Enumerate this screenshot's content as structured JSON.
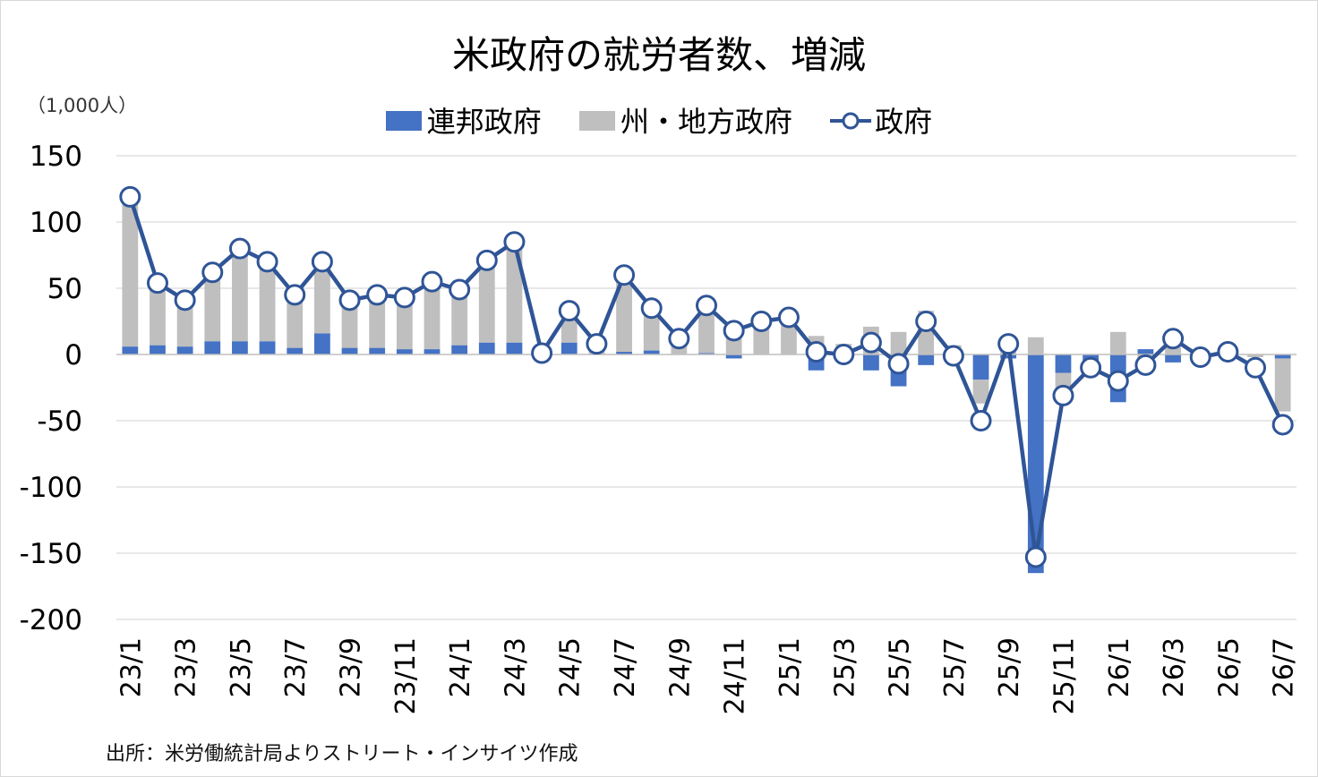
{
  "chart_data": {
    "type": "bar",
    "title": "米政府の就労者数、増減",
    "unit_label": "（1,000人）",
    "source": "出所：米労働統計局よりストリート・インサイツ作成",
    "ylim": [
      -200,
      150
    ],
    "yticks": [
      150,
      100,
      50,
      0,
      -50,
      -100,
      -150,
      -200
    ],
    "legend_position": "top-center",
    "grid": true,
    "categories": [
      "23/1",
      "23/2",
      "23/3",
      "23/4",
      "23/5",
      "23/6",
      "23/7",
      "23/8",
      "23/9",
      "23/10",
      "23/11",
      "23/12",
      "24/1",
      "24/2",
      "24/3",
      "24/4",
      "24/5",
      "24/6",
      "24/7",
      "24/8",
      "24/9",
      "24/10",
      "24/11",
      "24/12",
      "25/1",
      "25/2",
      "25/3",
      "25/4",
      "25/5",
      "25/6",
      "25/7",
      "25/8",
      "25/9",
      "25/10",
      "25/11",
      "25/12",
      "26/1",
      "26/2",
      "26/3",
      "26/4",
      "26/5",
      "26/6",
      "26/7"
    ],
    "x_tick_labels": [
      "23/1",
      "",
      "23/3",
      "",
      "23/5",
      "",
      "23/7",
      "",
      "23/9",
      "",
      "23/11",
      "",
      "24/1",
      "",
      "24/3",
      "",
      "24/5",
      "",
      "24/7",
      "",
      "24/9",
      "",
      "24/11",
      "",
      "25/1",
      "",
      "25/3",
      "",
      "25/5",
      "",
      "25/7",
      "",
      "25/9",
      "",
      "25/11",
      "",
      "26/1",
      "",
      "26/3",
      "",
      "26/5",
      "",
      "26/7"
    ],
    "series": [
      {
        "name": "連邦政府",
        "type": "bar",
        "color": "#4472c4",
        "values": [
          6,
          7,
          6,
          10,
          10,
          10,
          5,
          16,
          5,
          5,
          4,
          4,
          7,
          9,
          9,
          0,
          9,
          0,
          2,
          3,
          0,
          1,
          -3,
          0,
          0,
          -12,
          -2,
          -12,
          -24,
          -8,
          -4,
          -19,
          -3,
          -165,
          -14,
          -5,
          -36,
          4,
          -6,
          -2,
          -2,
          0,
          -3
        ]
      },
      {
        "name": "州・地方政府",
        "type": "bar",
        "color": "#bfbfbf",
        "values": [
          113,
          47,
          35,
          52,
          70,
          60,
          40,
          54,
          36,
          40,
          39,
          51,
          42,
          62,
          76,
          1,
          24,
          8,
          58,
          32,
          12,
          36,
          21,
          25,
          28,
          14,
          8,
          21,
          17,
          33,
          7,
          -18,
          13,
          13,
          -17,
          -5,
          17,
          -12,
          17,
          -1,
          2,
          -2,
          -40
        ]
      },
      {
        "name": "政府",
        "type": "line",
        "color": "#2f5597",
        "values": [
          119,
          54,
          41,
          62,
          80,
          70,
          45,
          70,
          41,
          45,
          43,
          55,
          49,
          71,
          85,
          1,
          33,
          8,
          60,
          35,
          12,
          37,
          18,
          25,
          28,
          2,
          0,
          9,
          -7,
          25,
          -1,
          -50,
          8,
          -153,
          -31,
          -10,
          -20,
          -8,
          12,
          -2,
          2,
          -10,
          -53
        ]
      }
    ]
  }
}
